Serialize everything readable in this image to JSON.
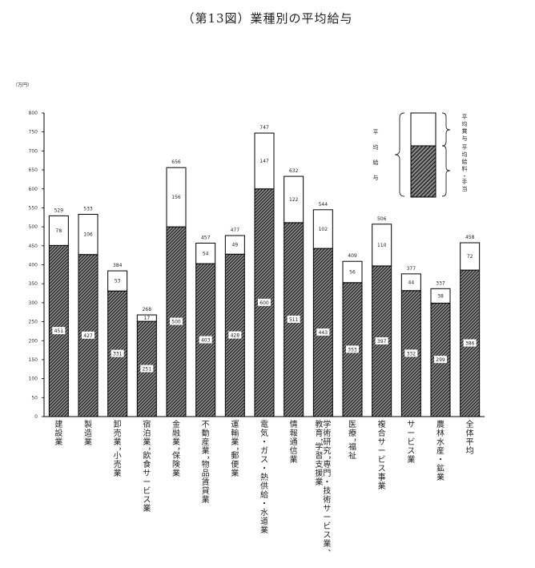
{
  "chart_data": {
    "type": "bar",
    "stacked": true,
    "title": "（第13図）業種別の平均給与",
    "unit_label": "（万円）",
    "ylim": [
      0,
      800
    ],
    "yticks": [
      0,
      50,
      100,
      150,
      200,
      250,
      300,
      350,
      400,
      450,
      500,
      550,
      600,
      650,
      700,
      750,
      800
    ],
    "categories": [
      "建設業",
      "製造業",
      "卸売業，小売業",
      "宿泊業，飲食サービス業",
      "金融業，保険業",
      "不動産業，物品賃貸業",
      "運輸業，郵便業",
      "電気・ガス・熱供給・水道業",
      "情報通信業",
      "学術研究，専門・技術サービス業、教育，学習支援業",
      "医療，福祉",
      "複合サービス事業",
      "サービス業",
      "農林水産・鉱業",
      "全体平均"
    ],
    "category_label_lines": [
      [
        "建設業"
      ],
      [
        "製造業"
      ],
      [
        "卸売業，小売業"
      ],
      [
        "宿泊業，飲食サービス業"
      ],
      [
        "金融業，保険業"
      ],
      [
        "不動産業，物品賃貸業"
      ],
      [
        "運輸業，郵便業"
      ],
      [
        "電気・ガス・熱供給・水道業"
      ],
      [
        "情報通信業"
      ],
      [
        "学術研究，専門・技術サービス業、",
        "教育，学習支援業"
      ],
      [
        "医療，福祉"
      ],
      [
        "複合サービス事業"
      ],
      [
        "サービス業"
      ],
      [
        "農林水産・鉱業"
      ],
      [
        "全体平均"
      ]
    ],
    "series": [
      {
        "name": "平均給料・手当",
        "values": [
          451,
          427,
          331,
          251,
          500,
          403,
          428,
          600,
          511,
          443,
          353,
          397,
          332,
          299,
          386
        ]
      },
      {
        "name": "平均賞与",
        "values": [
          78,
          106,
          53,
          17,
          156,
          54,
          49,
          147,
          122,
          102,
          56,
          110,
          44,
          38,
          72
        ]
      }
    ],
    "totals": [
      529,
      533,
      384,
      268,
      656,
      457,
      477,
      747,
      632,
      544,
      409,
      506,
      377,
      337,
      458
    ],
    "legend": {
      "group_label": "平均給与",
      "placement": "top-right"
    },
    "colors": {
      "hatch": "#333333",
      "bonus_fill": "#ffffff",
      "border": "#000000"
    }
  }
}
